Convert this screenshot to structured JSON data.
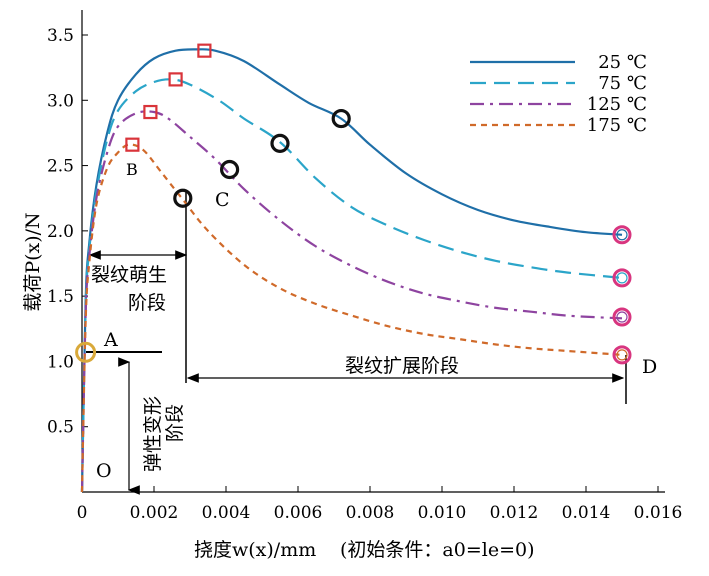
{
  "chart_data": {
    "type": "line",
    "xlabel": "挠度w(x)/mm",
    "xlabel_note": "(初始条件：a0=le=0)",
    "ylabel": "载荷P(x)/N",
    "xlim": [
      0,
      0.016
    ],
    "ylim": [
      0,
      3.5
    ],
    "xticks": [
      0,
      0.002,
      0.004,
      0.006,
      0.008,
      0.01,
      0.012,
      0.014,
      0.016
    ],
    "xtick_labels": [
      "0",
      "0.002",
      "0.004",
      "0.006",
      "0.008",
      "0.010",
      "0.012",
      "0.014",
      "0.016"
    ],
    "yticks": [
      0.5,
      1.0,
      1.5,
      2.0,
      2.5,
      3.0,
      3.5
    ],
    "ytick_labels": [
      "0.5",
      "1.0",
      "1.5",
      "2.0",
      "2.5",
      "3.0",
      "3.5"
    ],
    "legend_position": "top-right",
    "series": [
      {
        "name": "25 ℃",
        "color": "#1f6fa8",
        "dash": "solid",
        "points": [
          [
            0,
            0
          ],
          [
            0.0001,
            1.45
          ],
          [
            0.0002,
            1.9
          ],
          [
            0.0004,
            2.35
          ],
          [
            0.0007,
            2.75
          ],
          [
            0.001,
            3.0
          ],
          [
            0.0015,
            3.2
          ],
          [
            0.002,
            3.32
          ],
          [
            0.0026,
            3.38
          ],
          [
            0.0032,
            3.39
          ],
          [
            0.0037,
            3.38
          ],
          [
            0.0045,
            3.3
          ],
          [
            0.0055,
            3.12
          ],
          [
            0.0063,
            2.98
          ],
          [
            0.0072,
            2.86
          ],
          [
            0.008,
            2.66
          ],
          [
            0.009,
            2.44
          ],
          [
            0.01,
            2.28
          ],
          [
            0.011,
            2.16
          ],
          [
            0.012,
            2.08
          ],
          [
            0.013,
            2.03
          ],
          [
            0.014,
            1.99
          ],
          [
            0.015,
            1.97
          ]
        ],
        "peak_marker": [
          0.0034,
          3.38
        ],
        "crack_marker": [
          0.0072,
          2.86
        ],
        "end_marker": [
          0.015,
          1.97
        ]
      },
      {
        "name": "75 ℃",
        "color": "#2ba5c9",
        "dash": "long",
        "points": [
          [
            0,
            0
          ],
          [
            0.0001,
            1.4
          ],
          [
            0.0002,
            1.85
          ],
          [
            0.0004,
            2.3
          ],
          [
            0.0007,
            2.7
          ],
          [
            0.001,
            2.92
          ],
          [
            0.0015,
            3.07
          ],
          [
            0.002,
            3.14
          ],
          [
            0.0025,
            3.16
          ],
          [
            0.003,
            3.12
          ],
          [
            0.0038,
            3.0
          ],
          [
            0.0045,
            2.86
          ],
          [
            0.0055,
            2.68
          ],
          [
            0.0065,
            2.4
          ],
          [
            0.0075,
            2.18
          ],
          [
            0.0085,
            2.04
          ],
          [
            0.0095,
            1.93
          ],
          [
            0.0105,
            1.84
          ],
          [
            0.0115,
            1.77
          ],
          [
            0.0125,
            1.72
          ],
          [
            0.0135,
            1.68
          ],
          [
            0.015,
            1.64
          ]
        ],
        "peak_marker": [
          0.0026,
          3.16
        ],
        "crack_marker": [
          0.0055,
          2.67
        ],
        "end_marker": [
          0.015,
          1.64
        ]
      },
      {
        "name": "125 ℃",
        "color": "#8e44a0",
        "dash": "dashdot",
        "points": [
          [
            0,
            0
          ],
          [
            0.0001,
            1.35
          ],
          [
            0.0002,
            1.8
          ],
          [
            0.0004,
            2.25
          ],
          [
            0.0007,
            2.6
          ],
          [
            0.001,
            2.8
          ],
          [
            0.0015,
            2.9
          ],
          [
            0.002,
            2.91
          ],
          [
            0.0024,
            2.86
          ],
          [
            0.003,
            2.72
          ],
          [
            0.0037,
            2.55
          ],
          [
            0.0045,
            2.32
          ],
          [
            0.0055,
            2.08
          ],
          [
            0.0065,
            1.88
          ],
          [
            0.0075,
            1.73
          ],
          [
            0.0085,
            1.61
          ],
          [
            0.0095,
            1.52
          ],
          [
            0.0105,
            1.46
          ],
          [
            0.0115,
            1.41
          ],
          [
            0.0125,
            1.38
          ],
          [
            0.0135,
            1.35
          ],
          [
            0.015,
            1.33
          ]
        ],
        "peak_marker": [
          0.0019,
          2.91
        ],
        "crack_marker": [
          0.0041,
          2.47
        ],
        "end_marker": [
          0.015,
          1.34
        ]
      },
      {
        "name": "175 ℃",
        "color": "#d06a2a",
        "dash": "short",
        "points": [
          [
            0,
            0
          ],
          [
            0.0001,
            1.3
          ],
          [
            0.0002,
            1.75
          ],
          [
            0.0004,
            2.2
          ],
          [
            0.0007,
            2.48
          ],
          [
            0.001,
            2.6
          ],
          [
            0.0013,
            2.66
          ],
          [
            0.0017,
            2.62
          ],
          [
            0.0022,
            2.45
          ],
          [
            0.0028,
            2.24
          ],
          [
            0.0035,
            2.0
          ],
          [
            0.0045,
            1.74
          ],
          [
            0.0055,
            1.56
          ],
          [
            0.0065,
            1.44
          ],
          [
            0.0075,
            1.35
          ],
          [
            0.0085,
            1.27
          ],
          [
            0.0095,
            1.21
          ],
          [
            0.0105,
            1.17
          ],
          [
            0.0115,
            1.13
          ],
          [
            0.0125,
            1.1
          ],
          [
            0.0135,
            1.08
          ],
          [
            0.015,
            1.05
          ]
        ],
        "peak_marker": [
          0.0014,
          2.66
        ],
        "crack_marker": [
          0.0028,
          2.25
        ],
        "end_marker": [
          0.015,
          1.05
        ]
      }
    ],
    "start_marker": [
      0.0001,
      1.07
    ],
    "annotations": {
      "label_A": "A",
      "label_B": "B",
      "label_C": "C",
      "label_D": "D",
      "label_O": "O",
      "crack_initiation": "裂纹萌生\n阶段",
      "crack_initiation_line1": "裂纹萌生",
      "crack_initiation_line2": "阶段",
      "crack_growth": "裂纹扩展阶段",
      "elastic_stage_1": "弹性变形",
      "elastic_stage_2": "阶段"
    }
  }
}
